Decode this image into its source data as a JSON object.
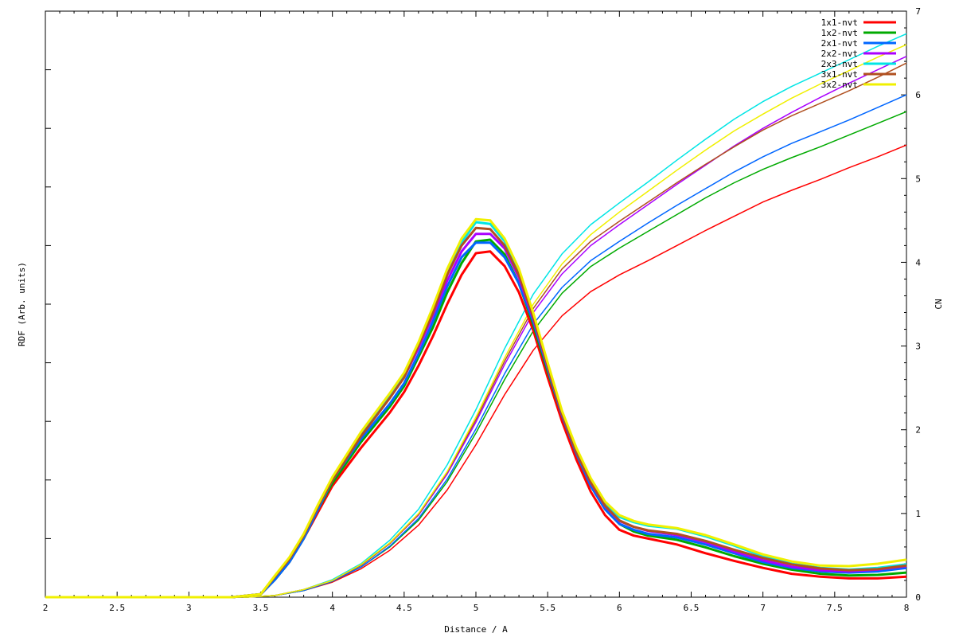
{
  "chart_data": {
    "type": "line",
    "title": "",
    "xlabel": "Distance / A",
    "ylabel_left": "RDF (Arb. units)",
    "ylabel_right": "CN",
    "xlim": [
      2,
      8
    ],
    "ylim_right": [
      0,
      7
    ],
    "x_ticks": [
      "2",
      "2.5",
      "3",
      "3.5",
      "4",
      "4.5",
      "5",
      "5.5",
      "6",
      "6.5",
      "7",
      "7.5",
      "8"
    ],
    "y_right_ticks": [
      "0",
      "1",
      "2",
      "3",
      "4",
      "5",
      "6",
      "7"
    ],
    "grid": false,
    "legend_position": "top-right",
    "rdf_x": [
      2.0,
      3.3,
      3.5,
      3.6,
      3.7,
      3.8,
      3.9,
      4.0,
      4.2,
      4.4,
      4.5,
      4.6,
      4.7,
      4.8,
      4.9,
      5.0,
      5.1,
      5.2,
      5.3,
      5.4,
      5.5,
      5.6,
      5.7,
      5.8,
      5.9,
      6.0,
      6.1,
      6.2,
      6.4,
      6.6,
      6.8,
      7.0,
      7.2,
      7.4,
      7.6,
      7.8,
      8.0
    ],
    "cn_x": [
      2.0,
      3.4,
      3.6,
      3.8,
      4.0,
      4.2,
      4.4,
      4.6,
      4.8,
      5.0,
      5.2,
      5.4,
      5.6,
      5.8,
      6.0,
      6.2,
      6.4,
      6.6,
      6.8,
      7.0,
      7.2,
      7.4,
      7.6,
      7.8,
      8.0
    ],
    "series": [
      {
        "name": "1x1-nvt",
        "color": "#ff0000",
        "rdf": [
          0,
          0,
          0.005,
          0.03,
          0.06,
          0.1,
          0.145,
          0.19,
          0.255,
          0.315,
          0.35,
          0.395,
          0.445,
          0.5,
          0.55,
          0.587,
          0.59,
          0.565,
          0.52,
          0.455,
          0.375,
          0.3,
          0.235,
          0.18,
          0.14,
          0.115,
          0.105,
          0.1,
          0.09,
          0.075,
          0.062,
          0.05,
          0.04,
          0.035,
          0.032,
          0.032,
          0.035
        ],
        "cn": [
          0,
          0,
          0.02,
          0.08,
          0.18,
          0.34,
          0.56,
          0.86,
          1.28,
          1.82,
          2.42,
          2.95,
          3.36,
          3.65,
          3.85,
          4.02,
          4.2,
          4.38,
          4.55,
          4.72,
          4.86,
          4.99,
          5.13,
          5.26,
          5.4
        ]
      },
      {
        "name": "1x2-nvt",
        "color": "#00aa00",
        "rdf": [
          0,
          0,
          0.005,
          0.03,
          0.06,
          0.1,
          0.15,
          0.195,
          0.265,
          0.325,
          0.36,
          0.41,
          0.46,
          0.52,
          0.57,
          0.607,
          0.61,
          0.585,
          0.535,
          0.465,
          0.385,
          0.31,
          0.245,
          0.19,
          0.15,
          0.125,
          0.112,
          0.105,
          0.098,
          0.085,
          0.07,
          0.057,
          0.047,
          0.04,
          0.037,
          0.038,
          0.042
        ],
        "cn": [
          0,
          0,
          0.02,
          0.08,
          0.19,
          0.36,
          0.6,
          0.92,
          1.38,
          1.96,
          2.6,
          3.18,
          3.63,
          3.95,
          4.17,
          4.37,
          4.57,
          4.77,
          4.95,
          5.11,
          5.25,
          5.38,
          5.52,
          5.66,
          5.8
        ]
      },
      {
        "name": "2x1-nvt",
        "color": "#0066ff",
        "rdf": [
          0,
          0,
          0.005,
          0.03,
          0.06,
          0.1,
          0.15,
          0.2,
          0.27,
          0.33,
          0.365,
          0.415,
          0.47,
          0.53,
          0.58,
          0.605,
          0.605,
          0.58,
          0.535,
          0.47,
          0.39,
          0.31,
          0.245,
          0.19,
          0.15,
          0.125,
          0.115,
          0.108,
          0.102,
          0.09,
          0.075,
          0.06,
          0.05,
          0.044,
          0.042,
          0.044,
          0.05
        ],
        "cn": [
          0,
          0,
          0.02,
          0.08,
          0.19,
          0.36,
          0.61,
          0.94,
          1.41,
          2.01,
          2.67,
          3.26,
          3.7,
          4.02,
          4.25,
          4.47,
          4.68,
          4.88,
          5.08,
          5.26,
          5.42,
          5.56,
          5.7,
          5.85,
          6.0
        ]
      },
      {
        "name": "2x2-nvt",
        "color": "#aa00ff",
        "rdf": [
          0,
          0,
          0.005,
          0.035,
          0.065,
          0.105,
          0.155,
          0.2,
          0.275,
          0.34,
          0.375,
          0.425,
          0.48,
          0.54,
          0.59,
          0.62,
          0.62,
          0.595,
          0.545,
          0.475,
          0.392,
          0.312,
          0.248,
          0.195,
          0.155,
          0.13,
          0.12,
          0.113,
          0.106,
          0.094,
          0.078,
          0.063,
          0.052,
          0.046,
          0.044,
          0.047,
          0.053
        ],
        "cn": [
          0,
          0,
          0.02,
          0.09,
          0.2,
          0.38,
          0.64,
          0.98,
          1.47,
          2.09,
          2.78,
          3.4,
          3.86,
          4.2,
          4.45,
          4.69,
          4.93,
          5.16,
          5.39,
          5.6,
          5.79,
          5.97,
          6.14,
          6.3,
          6.46
        ]
      },
      {
        "name": "2x3-nvt",
        "color": "#00e5e5",
        "rdf": [
          0,
          0,
          0.005,
          0.035,
          0.065,
          0.105,
          0.155,
          0.2,
          0.28,
          0.345,
          0.38,
          0.43,
          0.49,
          0.55,
          0.605,
          0.64,
          0.637,
          0.607,
          0.555,
          0.48,
          0.395,
          0.315,
          0.252,
          0.2,
          0.16,
          0.137,
          0.128,
          0.122,
          0.117,
          0.104,
          0.088,
          0.07,
          0.057,
          0.05,
          0.047,
          0.05,
          0.056
        ],
        "cn": [
          0,
          0,
          0.02,
          0.09,
          0.21,
          0.4,
          0.68,
          1.05,
          1.58,
          2.24,
          2.97,
          3.62,
          4.1,
          4.45,
          4.71,
          4.96,
          5.22,
          5.47,
          5.71,
          5.92,
          6.1,
          6.26,
          6.42,
          6.58,
          6.73
        ]
      },
      {
        "name": "3x1-nvt",
        "color": "#b05020",
        "rdf": [
          0,
          0,
          0.005,
          0.035,
          0.065,
          0.105,
          0.155,
          0.2,
          0.275,
          0.34,
          0.375,
          0.43,
          0.485,
          0.55,
          0.6,
          0.63,
          0.628,
          0.6,
          0.55,
          0.478,
          0.395,
          0.313,
          0.248,
          0.196,
          0.156,
          0.131,
          0.12,
          0.114,
          0.108,
          0.096,
          0.081,
          0.067,
          0.056,
          0.049,
          0.046,
          0.048,
          0.054
        ],
        "cn": [
          0,
          0,
          0.02,
          0.09,
          0.2,
          0.38,
          0.64,
          0.99,
          1.49,
          2.12,
          2.82,
          3.45,
          3.92,
          4.25,
          4.49,
          4.72,
          4.95,
          5.17,
          5.38,
          5.58,
          5.75,
          5.9,
          6.05,
          6.21,
          6.38
        ]
      },
      {
        "name": "3x2-nvt",
        "color": "#f0f000",
        "rdf": [
          0,
          0,
          0.005,
          0.037,
          0.068,
          0.108,
          0.158,
          0.205,
          0.282,
          0.348,
          0.383,
          0.435,
          0.495,
          0.56,
          0.612,
          0.645,
          0.643,
          0.612,
          0.56,
          0.485,
          0.4,
          0.318,
          0.255,
          0.203,
          0.163,
          0.14,
          0.13,
          0.124,
          0.118,
          0.106,
          0.09,
          0.073,
          0.061,
          0.054,
          0.053,
          0.057,
          0.064
        ],
        "cn": [
          0,
          0,
          0.02,
          0.09,
          0.2,
          0.39,
          0.65,
          1.0,
          1.5,
          2.15,
          2.86,
          3.5,
          3.98,
          4.33,
          4.6,
          4.85,
          5.1,
          5.34,
          5.57,
          5.77,
          5.96,
          6.13,
          6.29,
          6.45,
          6.6
        ]
      }
    ]
  }
}
